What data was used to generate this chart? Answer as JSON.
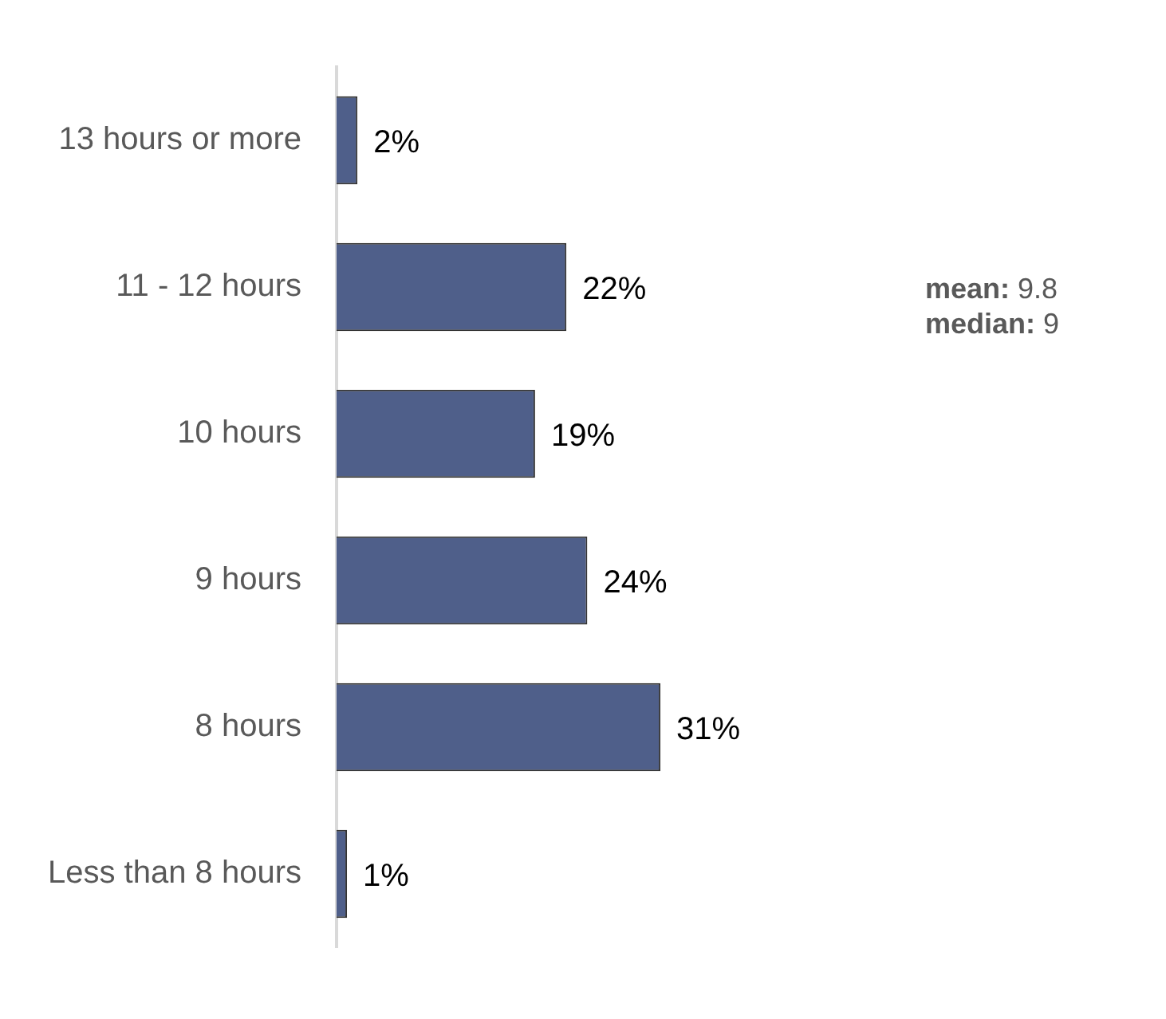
{
  "chart_data": {
    "type": "bar",
    "orientation": "horizontal",
    "categories": [
      "13 hours or more",
      "11 - 12 hours",
      "10 hours",
      "9 hours",
      "8 hours",
      "Less than 8 hours"
    ],
    "values": [
      2,
      22,
      19,
      24,
      31,
      1
    ],
    "value_labels": [
      "2%",
      "22%",
      "19%",
      "24%",
      "31%",
      "1%"
    ],
    "color": "#4f5f8a",
    "legend": false,
    "annotations": [
      "mean: 9.8",
      "median: 9"
    ]
  }
}
